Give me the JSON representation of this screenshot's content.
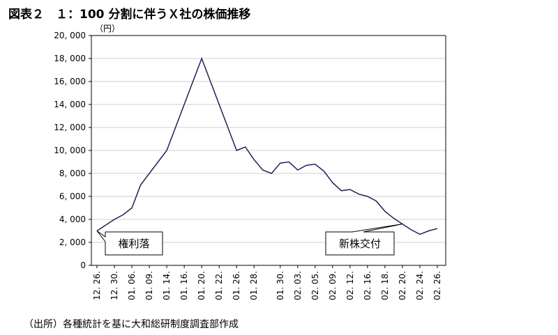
{
  "title": "図表２　１：100 分割に伴うＸ社の株価推移",
  "source": "（出所）各種統計を基に大和総研制度調査部作成",
  "unit_label": "（円）",
  "annotations": [
    {
      "text": "権利落",
      "x_label": "12. 26."
    },
    {
      "text": "新株交付",
      "x_label": "02. 20."
    }
  ],
  "colors": {
    "line": "#1f1f5c",
    "axis": "#000000",
    "grid": "#cfcfcf"
  },
  "chart_data": {
    "type": "line",
    "title": "",
    "xlabel": "",
    "ylabel": "（円）",
    "ylim": [
      0,
      20000
    ],
    "y_ticks": [
      0,
      2000,
      4000,
      6000,
      8000,
      10000,
      12000,
      14000,
      16000,
      18000,
      20000
    ],
    "y_tick_labels": [
      "0",
      "2, 000",
      "4, 000",
      "6, 000",
      "8, 000",
      "10, 000",
      "12, 000",
      "14, 000",
      "16, 000",
      "18, 000",
      "20, 000"
    ],
    "x_tick_labels": [
      "12. 26.",
      "12. 30.",
      "01. 06.",
      "01. 09.",
      "01. 14.",
      "01. 16.",
      "01. 20.",
      "01. 22.",
      "01. 26.",
      "01. 28.",
      "01. 30.",
      "02. 03.",
      "02. 05.",
      "02. 09.",
      "02. 12.",
      "02. 16.",
      "02. 18.",
      "02. 20.",
      "02. 24.",
      "02. 26."
    ],
    "grid": true,
    "series": [
      {
        "values": [
          3000,
          3500,
          4000,
          4400,
          5000,
          7000,
          8000,
          9000,
          10000,
          12000,
          14000,
          16000,
          18000,
          16000,
          14000,
          12000,
          10000,
          10300,
          9200,
          8300,
          8000,
          8900,
          9000,
          8300,
          8700,
          8800,
          8200,
          7200,
          6500,
          6600,
          6200,
          6000,
          5600,
          4700,
          4100,
          3600,
          3100,
          2700,
          3000,
          3200
        ]
      }
    ]
  }
}
